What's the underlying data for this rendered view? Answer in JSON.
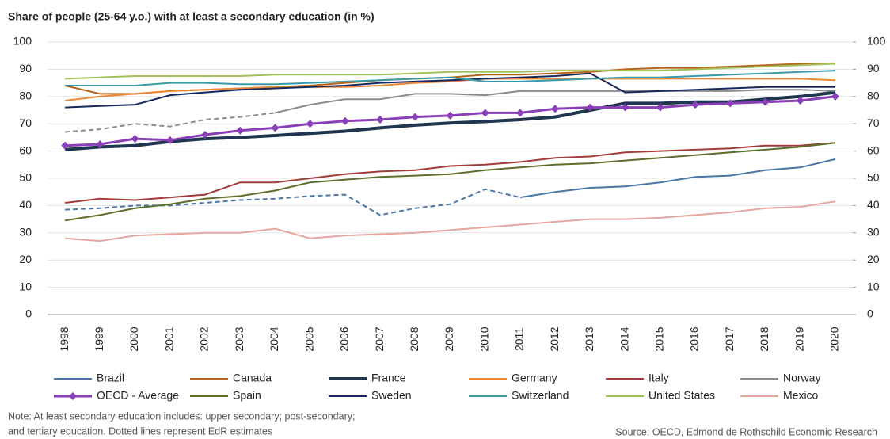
{
  "chart_data": {
    "type": "line",
    "title": "Share of people (25-64 y.o.) with at least a secondary education (in %)",
    "categories": [
      "1998",
      "1999",
      "2000",
      "2001",
      "2002",
      "2003",
      "2004",
      "2005",
      "2006",
      "2007",
      "2008",
      "2009",
      "2010",
      "2011",
      "2012",
      "2013",
      "2014",
      "2015",
      "2016",
      "2017",
      "2018",
      "2019",
      "2020"
    ],
    "ylim": [
      0,
      100
    ],
    "yticks": [
      0,
      10,
      20,
      30,
      40,
      50,
      60,
      70,
      80,
      90,
      100
    ],
    "y2lim": [
      0,
      100
    ],
    "y2ticks": [
      0,
      10,
      20,
      30,
      40,
      50,
      60,
      70,
      80,
      90,
      100
    ],
    "grid": true,
    "series": [
      {
        "name": "Brazil",
        "color": "#4a76a8",
        "dashed_through": "2011",
        "values": [
          38.5,
          39,
          40,
          40,
          41,
          42,
          42.5,
          43.5,
          44,
          36.5,
          39,
          40.5,
          46,
          43,
          45,
          46.5,
          47,
          48.5,
          50.5,
          51,
          53,
          54,
          57
        ]
      },
      {
        "name": "Canada",
        "color": "#b5651d",
        "values": [
          84,
          81,
          81,
          82,
          82.5,
          83,
          83.5,
          84,
          85,
          86,
          86.5,
          87,
          88,
          88,
          88.5,
          89,
          90,
          90.5,
          90.5,
          91,
          91.5,
          92,
          92
        ]
      },
      {
        "name": "France",
        "color": "#1f3550",
        "width": 4,
        "values": [
          60.5,
          61.5,
          62,
          63.5,
          64.5,
          65,
          65.7,
          66.5,
          67.3,
          68.5,
          69.5,
          70.3,
          70.8,
          71.5,
          72.5,
          75,
          77.5,
          77.5,
          78,
          78,
          79,
          80,
          81.5
        ]
      },
      {
        "name": "Germany",
        "color": "#e8893a",
        "values": [
          78.5,
          80,
          81,
          82,
          82.5,
          83,
          83.5,
          83.5,
          83.5,
          84,
          85,
          85.5,
          86.5,
          86.5,
          86.5,
          86.5,
          86.5,
          86.5,
          86.5,
          86.5,
          86.5,
          86.5,
          86
        ]
      },
      {
        "name": "Italy",
        "color": "#a33b3b",
        "values": [
          41,
          42.5,
          42,
          43,
          44,
          48.5,
          48.5,
          50,
          51.5,
          52.5,
          53,
          54.5,
          55,
          56,
          57.5,
          58,
          59.5,
          60,
          60.5,
          61,
          62,
          62,
          63
        ]
      },
      {
        "name": "Norway",
        "color": "#8c8c8c",
        "dashed_through": "2004",
        "values": [
          67,
          68,
          70,
          69,
          71.5,
          72.5,
          74,
          77,
          79,
          79,
          81,
          81,
          80.5,
          82,
          82,
          82,
          82,
          82,
          82,
          82,
          82.5,
          82.5,
          82
        ]
      },
      {
        "name": "OECD - Average",
        "color": "#8a3fb8",
        "width": 3,
        "marker": "diamond",
        "values": [
          62,
          62.5,
          64.5,
          64,
          66,
          67.5,
          68.5,
          70,
          71,
          71.5,
          72.5,
          73,
          74,
          74,
          75.5,
          76,
          76,
          76,
          77,
          77.5,
          78,
          78.5,
          80
        ]
      },
      {
        "name": "Spain",
        "color": "#5b6e2a",
        "values": [
          34.5,
          36.5,
          39,
          40.5,
          42.5,
          43.5,
          45.5,
          48.5,
          49.5,
          50.5,
          51,
          51.5,
          53,
          54,
          55,
          55.5,
          56.5,
          57.5,
          58.5,
          59.5,
          60.5,
          61.5,
          63
        ]
      },
      {
        "name": "Sweden",
        "color": "#16295e",
        "values": [
          76,
          76.5,
          77,
          80.5,
          81.5,
          82.5,
          83,
          83.5,
          84,
          85,
          85.5,
          86,
          86.5,
          87,
          87.5,
          88.5,
          81.5,
          82,
          82.5,
          83,
          83.5,
          83.5,
          83.5
        ]
      },
      {
        "name": "Switzerland",
        "color": "#3b9aa8",
        "values": [
          84,
          84,
          84,
          85,
          85,
          84.5,
          84.5,
          85,
          85.5,
          86,
          86.5,
          87,
          85.5,
          85.5,
          86,
          86.5,
          87,
          87,
          87.5,
          88,
          88.5,
          89,
          89.5
        ]
      },
      {
        "name": "United States",
        "color": "#a3c15a",
        "values": [
          86.5,
          87,
          87.5,
          87.5,
          87.5,
          87.5,
          88,
          88,
          88,
          88,
          88.5,
          89,
          89,
          89,
          89.5,
          89.5,
          89.5,
          89.5,
          90,
          90.5,
          91,
          91.5,
          92
        ]
      },
      {
        "name": "Mexico",
        "color": "#e8a6a0",
        "values": [
          28,
          27,
          29,
          29.5,
          30,
          30,
          31.5,
          28,
          29,
          29.5,
          30,
          31,
          32,
          33,
          34,
          35,
          35,
          35.5,
          36.5,
          37.5,
          39,
          39.5,
          41.5
        ]
      }
    ],
    "note": [
      "Note: At least secondary education includes: upper secondary; post-secondary;",
      "and tertiary education. Dotted lines represent EdR estimates"
    ],
    "source": "Source: OECD, Edmond de Rothschild Economic Research"
  }
}
